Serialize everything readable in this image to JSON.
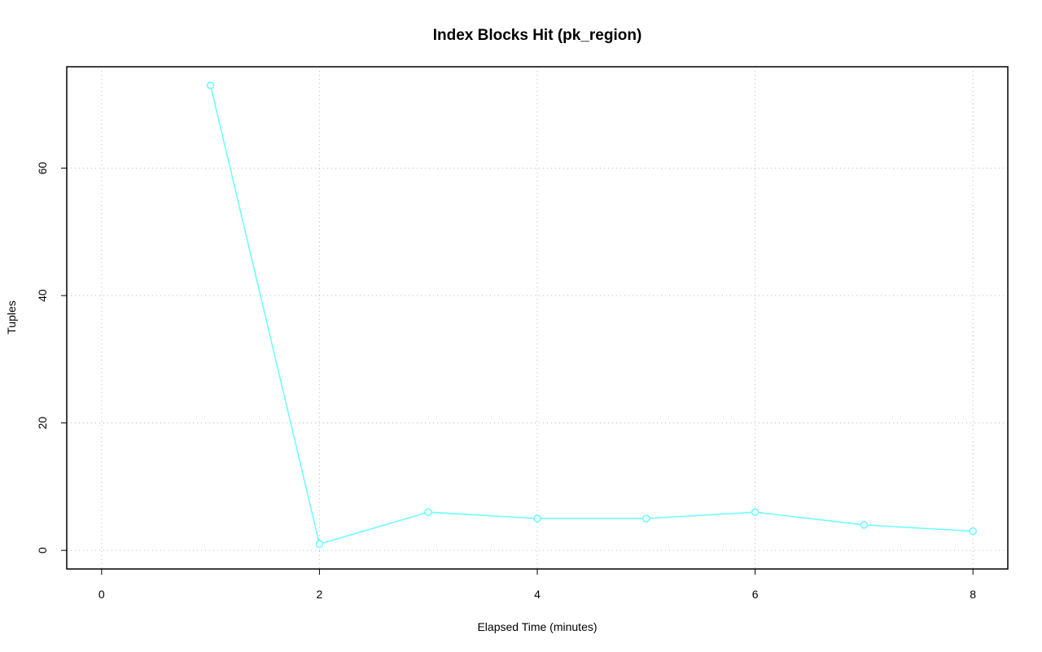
{
  "chart_data": {
    "type": "line",
    "title": "Index Blocks Hit (pk_region)",
    "x_label": "Elapsed Time (minutes)",
    "y_label": "Tuples",
    "x": [
      1,
      2,
      3,
      4,
      5,
      6,
      7,
      8
    ],
    "values": [
      73,
      1,
      6,
      5,
      5,
      6,
      4,
      3
    ],
    "color": "#66ffff",
    "xlim": [
      -0.32,
      8.32
    ],
    "xticks": [
      0,
      2,
      4,
      6,
      8
    ],
    "ylim": [
      -2.92,
      75.92
    ],
    "yticks": [
      0,
      20,
      40,
      60
    ],
    "grid": true
  }
}
